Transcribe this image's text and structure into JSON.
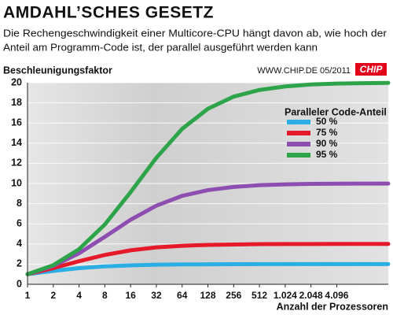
{
  "chart_data": {
    "type": "line",
    "title": "AMDAHL’SCHES GESETZ",
    "subtitle": [
      "Die Rechengeschwindigkeit einer Multicore-CPU hängt davon ab, wie hoch der",
      "Anteil am Programm-Code ist, der parallel ausgeführt werden kann"
    ],
    "y_label": "Beschleunigungsfaktor",
    "x_label": "Anzahl der Prozessoren",
    "source": "WWW.CHIP.DE  05/2011",
    "logo": "CHIP",
    "legend_title": "Paralleler Code-Anteil",
    "legend": "center right",
    "grid": true,
    "xscale": "log",
    "x": [
      1,
      2,
      4,
      8,
      16,
      32,
      64,
      128,
      256,
      512,
      1024,
      2048,
      4096,
      8192,
      16384
    ],
    "xlim": [
      1,
      16384
    ],
    "xticks": [
      1,
      2,
      4,
      8,
      16,
      32,
      64,
      128,
      256,
      512,
      {
        "value": 1024,
        "label": "1.024"
      },
      {
        "value": 2048,
        "label": "2.048"
      },
      {
        "value": 4096,
        "label": "4.096"
      }
    ],
    "ylim": [
      0,
      20
    ],
    "yticks": [
      0,
      2,
      4,
      6,
      8,
      10,
      12,
      14,
      16,
      18,
      20
    ],
    "series": [
      {
        "name": "50 %",
        "color": "#2aaee4",
        "values": [
          1,
          1.33,
          1.6,
          1.78,
          1.88,
          1.94,
          1.97,
          1.98,
          1.99,
          2,
          2,
          2,
          2,
          2,
          2
        ]
      },
      {
        "name": "75 %",
        "color": "#e6192a",
        "values": [
          1,
          1.6,
          2.29,
          2.91,
          3.37,
          3.66,
          3.82,
          3.91,
          3.95,
          3.98,
          3.99,
          3.99,
          4,
          4,
          4
        ]
      },
      {
        "name": "90 %",
        "color": "#8e4db0",
        "values": [
          1,
          1.82,
          3.08,
          4.71,
          6.4,
          7.8,
          8.77,
          9.34,
          9.66,
          9.83,
          9.91,
          9.96,
          9.98,
          9.99,
          9.99
        ]
      },
      {
        "name": "95 %",
        "color": "#2ea44a",
        "values": [
          1,
          1.9,
          3.48,
          5.93,
          9.14,
          12.55,
          15.42,
          17.41,
          18.62,
          19.28,
          19.63,
          19.82,
          19.91,
          19.95,
          19.98
        ]
      }
    ]
  }
}
